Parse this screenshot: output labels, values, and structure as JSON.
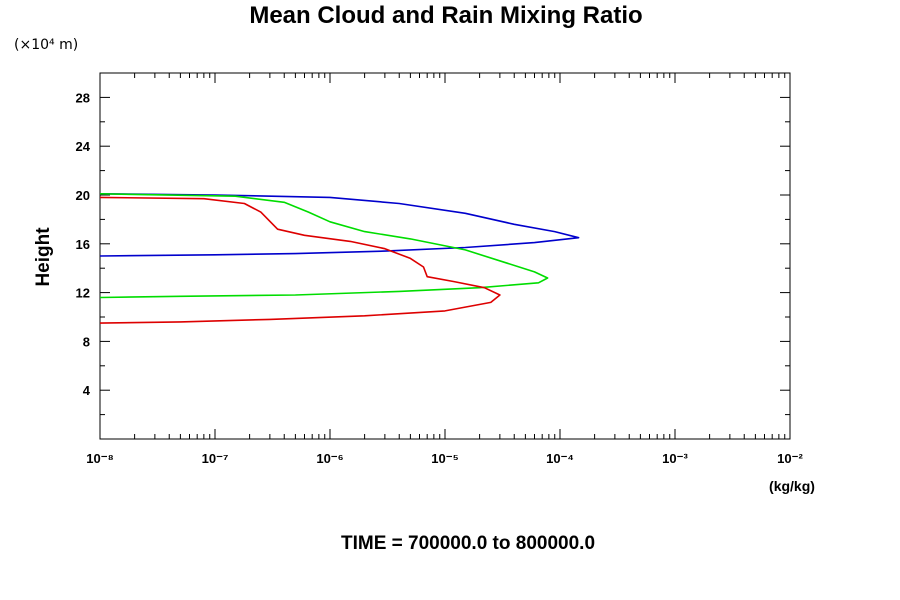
{
  "chart_data": {
    "type": "line",
    "title": "Mean Cloud and Rain Mixing Ratio",
    "ylabel": "Height",
    "y_unit_label": "(×10⁴ m)",
    "xunit": "(kg/kg)",
    "footer": "TIME = 700000.0 to 800000.0",
    "x_scale": "log",
    "xlim": [
      1e-08,
      0.01
    ],
    "ylim": [
      0,
      30
    ],
    "x_tick_labels": [
      "10⁻⁸",
      "10⁻⁷",
      "10⁻⁶",
      "10⁻⁵",
      "10⁻⁴",
      "10⁻³",
      "10⁻²"
    ],
    "y_tick_labels": [
      "4",
      "8",
      "12",
      "16",
      "20",
      "24",
      "28"
    ],
    "grid": false,
    "series": [
      {
        "color": "#0000cc",
        "points": [
          [
            1e-08,
            20.1
          ],
          [
            1e-07,
            20.0
          ],
          [
            1e-06,
            19.8
          ],
          [
            4e-06,
            19.3
          ],
          [
            1.5e-05,
            18.5
          ],
          [
            4e-05,
            17.6
          ],
          [
            9e-05,
            17.0
          ],
          [
            0.000145,
            16.5
          ],
          [
            6e-05,
            16.1
          ],
          [
            1.5e-05,
            15.7
          ],
          [
            3e-06,
            15.4
          ],
          [
            5e-07,
            15.2
          ],
          [
            1e-07,
            15.1
          ],
          [
            1e-08,
            15.0
          ]
        ]
      },
      {
        "color": "#00dd00",
        "points": [
          [
            1e-08,
            20.1
          ],
          [
            1.5e-07,
            19.9
          ],
          [
            4e-07,
            19.4
          ],
          [
            6.5e-07,
            18.6
          ],
          [
            1e-06,
            17.8
          ],
          [
            2e-06,
            17.0
          ],
          [
            5e-06,
            16.4
          ],
          [
            1.5e-05,
            15.5
          ],
          [
            3.5e-05,
            14.4
          ],
          [
            6e-05,
            13.7
          ],
          [
            7.8e-05,
            13.2
          ],
          [
            6.5e-05,
            12.8
          ],
          [
            2e-05,
            12.4
          ],
          [
            4e-06,
            12.1
          ],
          [
            5e-07,
            11.8
          ],
          [
            5e-08,
            11.7
          ],
          [
            1e-08,
            11.6
          ]
        ]
      },
      {
        "color": "#dd0000",
        "points": [
          [
            1e-08,
            19.8
          ],
          [
            8e-08,
            19.7
          ],
          [
            1.8e-07,
            19.3
          ],
          [
            2.5e-07,
            18.6
          ],
          [
            3.5e-07,
            17.2
          ],
          [
            6e-07,
            16.7
          ],
          [
            1.5e-06,
            16.2
          ],
          [
            3e-06,
            15.6
          ],
          [
            5e-06,
            14.8
          ],
          [
            6.5e-06,
            14.1
          ],
          [
            7e-06,
            13.3
          ],
          [
            1.2e-05,
            12.9
          ],
          [
            2.2e-05,
            12.4
          ],
          [
            3e-05,
            11.8
          ],
          [
            2.5e-05,
            11.2
          ],
          [
            1e-05,
            10.5
          ],
          [
            2e-06,
            10.1
          ],
          [
            3e-07,
            9.8
          ],
          [
            5e-08,
            9.6
          ],
          [
            1e-08,
            9.5
          ]
        ]
      }
    ]
  }
}
